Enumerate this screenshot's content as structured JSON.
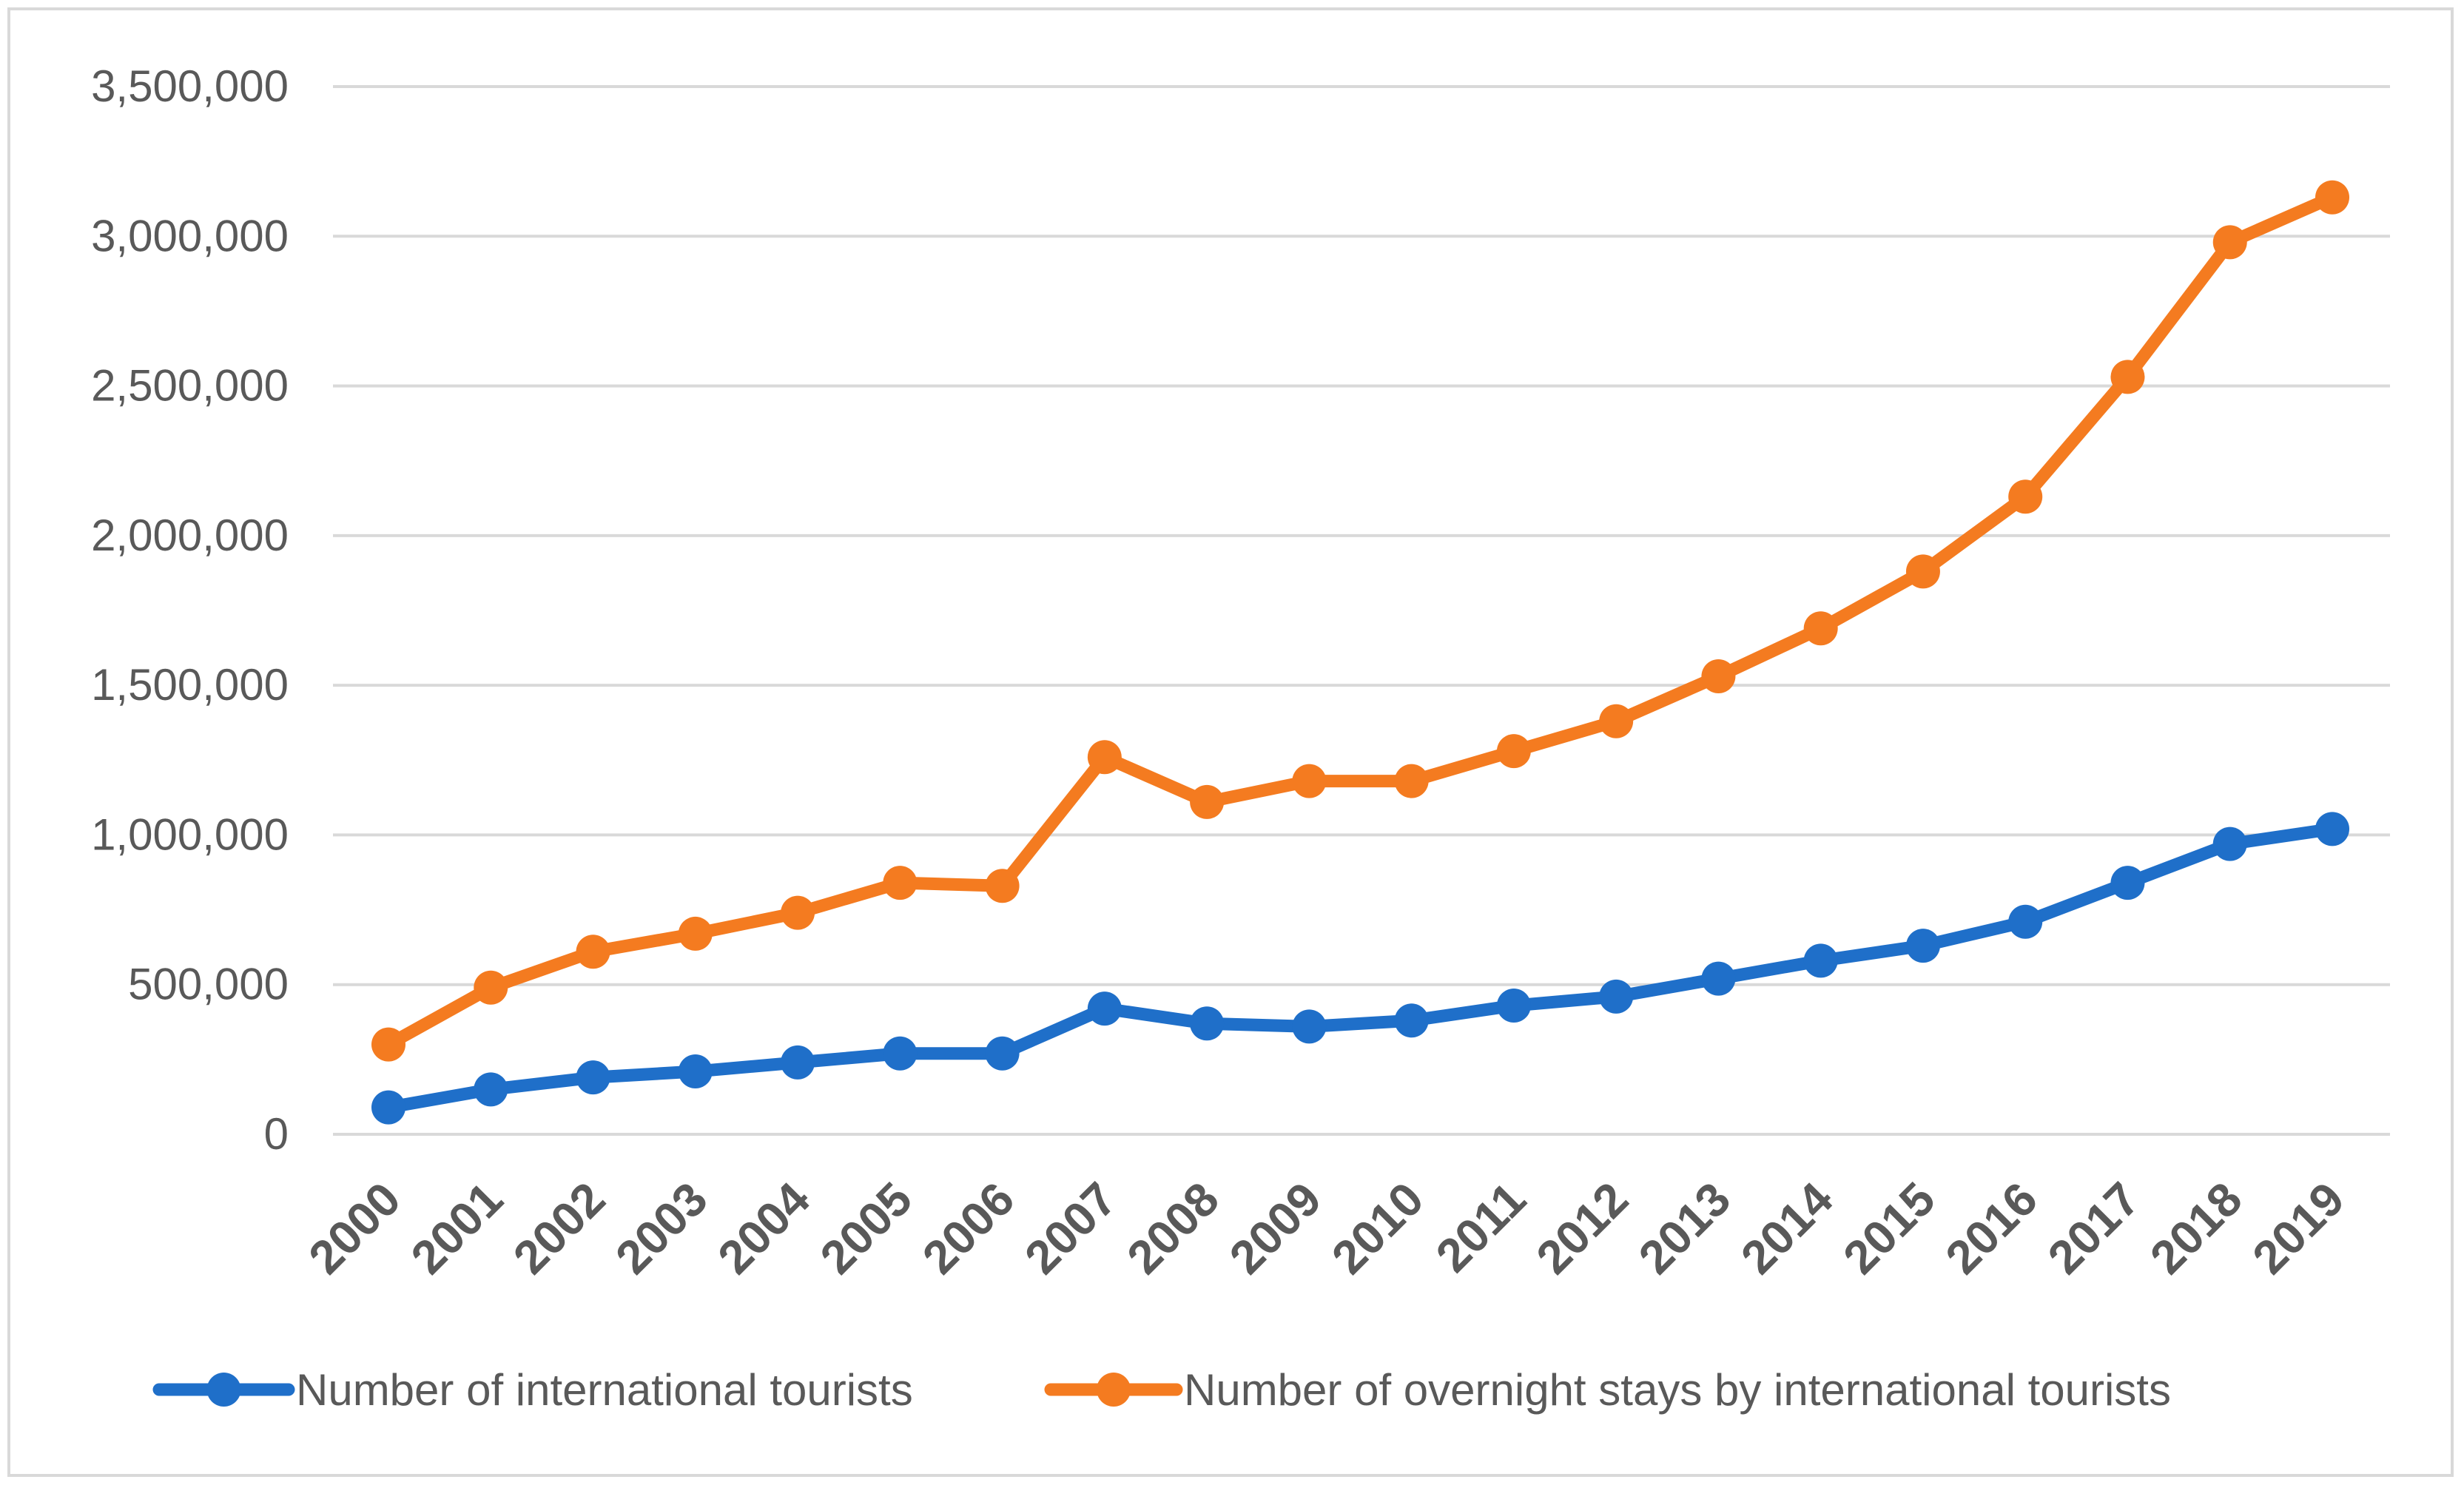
{
  "chart_data": {
    "type": "line",
    "title": "",
    "xlabel": "",
    "ylabel": "",
    "ylim": [
      0,
      3500000
    ],
    "ytick_step": 500000,
    "grid": true,
    "legend_position": "bottom",
    "categories": [
      "2000",
      "2001",
      "2002",
      "2003",
      "2004",
      "2005",
      "2006",
      "2007",
      "2008",
      "2009",
      "2010",
      "2011",
      "2012",
      "2013",
      "2014",
      "2015",
      "2016",
      "2017",
      "2018",
      "2019"
    ],
    "y_tick_labels": [
      "0",
      "500,000",
      "1,000,000",
      "1,500,000",
      "2,000,000",
      "2,500,000",
      "3,000,000",
      "3,500,000"
    ],
    "series": [
      {
        "name": "Number of international tourists",
        "color": "#1f6fc9",
        "values": [
          90000,
          150000,
          190000,
          210000,
          240000,
          270000,
          270000,
          420000,
          370000,
          360000,
          380000,
          430000,
          460000,
          520000,
          580000,
          630000,
          710000,
          840000,
          970000,
          1020000
        ]
      },
      {
        "name": "Number of overnight stays by international tourists",
        "color": "#f47b20",
        "values": [
          300000,
          490000,
          610000,
          670000,
          740000,
          840000,
          830000,
          1260000,
          1110000,
          1180000,
          1180000,
          1280000,
          1380000,
          1530000,
          1690000,
          1880000,
          2130000,
          2530000,
          2980000,
          3130000
        ]
      }
    ]
  }
}
